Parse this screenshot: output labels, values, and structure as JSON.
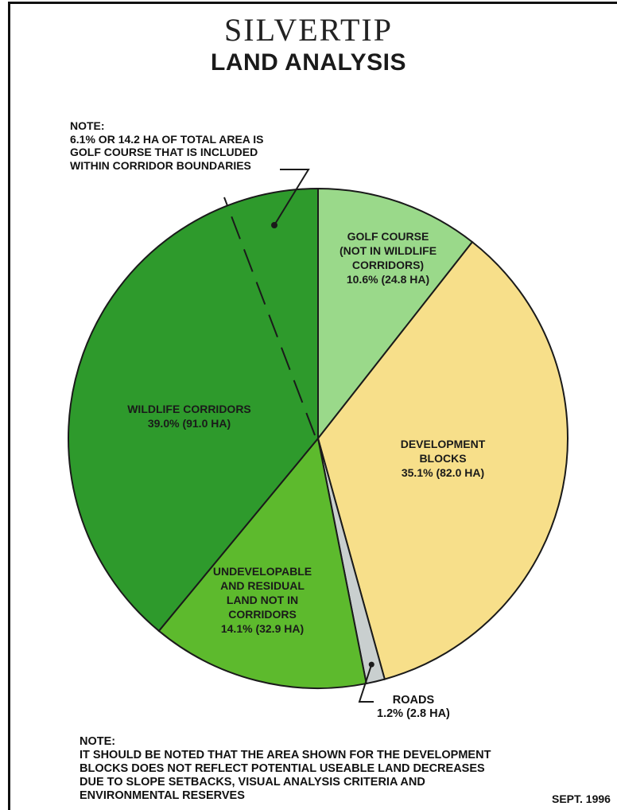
{
  "header": {
    "brand": "SILVERTIP",
    "title": "LAND ANALYSIS"
  },
  "notes": {
    "top": "NOTE:\n6.1% OR 14.2 HA OF TOTAL AREA IS\nGOLF COURSE THAT IS INCLUDED\nWITHIN CORRIDOR BOUNDARIES",
    "bottom": "NOTE:\nIT SHOULD BE NOTED THAT THE AREA SHOWN FOR THE DEVELOPMENT\nBLOCKS DOES NOT REFLECT POTENTIAL USEABLE LAND DECREASES\nDUE TO SLOPE SETBACKS, VISUAL ANALYSIS CRITERIA AND\nENVIRONMENTAL RESERVES",
    "date": "SEPT. 1996"
  },
  "chart_data": {
    "type": "pie",
    "title": "LAND ANALYSIS",
    "start": "12 o'clock, clockwise",
    "slices": [
      {
        "name": "GOLF COURSE (NOT IN WILDLIFE CORRIDORS)",
        "percent": 10.6,
        "hectares": 24.8,
        "label": "GOLF COURSE\n(NOT IN WILDLIFE\nCORRIDORS)\n10.6% (24.8 HA)",
        "color": "#9ad98a"
      },
      {
        "name": "DEVELOPMENT BLOCKS",
        "percent": 35.1,
        "hectares": 82.0,
        "label": "DEVELOPMENT\nBLOCKS\n35.1% (82.0 HA)",
        "color": "#f7df8a"
      },
      {
        "name": "ROADS",
        "percent": 1.2,
        "hectares": 2.8,
        "label": "ROADS\n1.2% (2.8 HA)",
        "color": "#c9cfcf"
      },
      {
        "name": "UNDEVELOPABLE AND RESIDUAL LAND NOT IN CORRIDORS",
        "percent": 14.1,
        "hectares": 32.9,
        "label": "UNDEVELOPABLE\nAND RESIDUAL\nLAND NOT IN\nCORRIDORS\n14.1% (32.9 HA)",
        "color": "#5dba2d"
      },
      {
        "name": "WILDLIFE CORRIDORS",
        "percent": 39.0,
        "hectares": 91.0,
        "label": "WILDLIFE CORRIDORS\n39.0% (91.0 HA)",
        "color": "#2e9a2c"
      }
    ],
    "annotation": "6.1% OR 14.2 HA OF TOTAL AREA IS GOLF COURSE THAT IS INCLUDED WITHIN CORRIDOR BOUNDARIES"
  }
}
